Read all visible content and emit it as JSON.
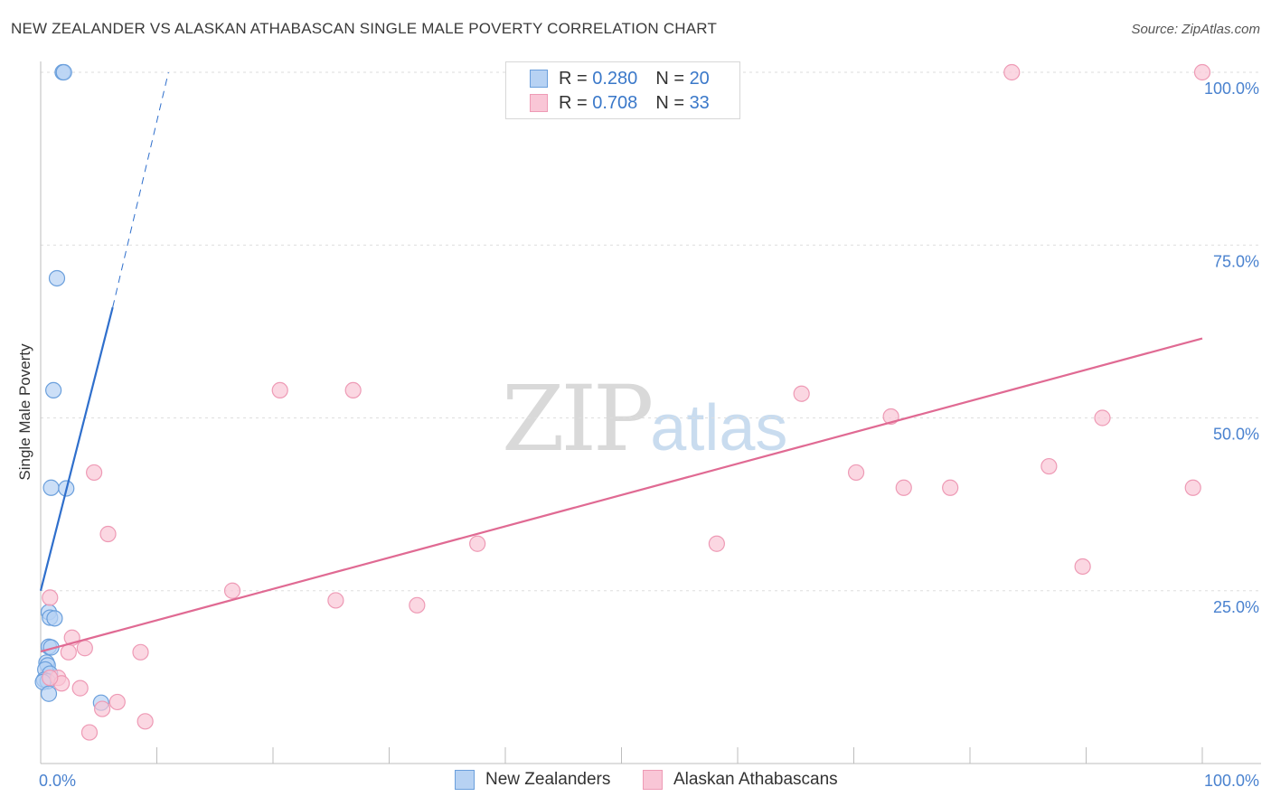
{
  "title": "NEW ZEALANDER VS ALASKAN ATHABASCAN SINGLE MALE POVERTY CORRELATION CHART",
  "source": "Source: ZipAtlas.com",
  "watermark": {
    "zip": "ZIP",
    "atlas": "atlas"
  },
  "legend": {
    "rows": [
      {
        "r_label": "R =",
        "r_value": "0.280",
        "n_label": "N =",
        "n_value": "20"
      },
      {
        "r_label": "R =",
        "r_value": "0.708",
        "n_label": "N =",
        "n_value": "33"
      }
    ]
  },
  "colors": {
    "blue_fill": "#b7d2f3",
    "blue_stroke": "#6a9fdc",
    "blue_line": "#2f6fcc",
    "pink_fill": "#f9c6d6",
    "pink_stroke": "#ee9ab5",
    "pink_line": "#e06a93",
    "tick_text": "#4a82cf"
  },
  "chart_data": {
    "type": "scatter",
    "title": "NEW ZEALANDER VS ALASKAN ATHABASCAN SINGLE MALE POVERTY CORRELATION CHART",
    "xlabel": "",
    "ylabel": "Single Male Poverty",
    "xlim": [
      0,
      100
    ],
    "ylim": [
      0,
      100
    ],
    "x_tick_labels": [
      "0.0%",
      "100.0%"
    ],
    "y_ticks": [
      25,
      50,
      75,
      100
    ],
    "y_tick_labels": [
      "25.0%",
      "50.0%",
      "75.0%",
      "100.0%"
    ],
    "series": [
      {
        "name": "New Zealanders",
        "r": 0.28,
        "n": 20,
        "points": [
          [
            1.9,
            100
          ],
          [
            2.0,
            100
          ],
          [
            1.4,
            70.2
          ],
          [
            1.1,
            54.0
          ],
          [
            0.9,
            39.9
          ],
          [
            2.2,
            39.8
          ],
          [
            0.7,
            21.9
          ],
          [
            0.8,
            21.1
          ],
          [
            1.2,
            21.0
          ],
          [
            0.7,
            16.9
          ],
          [
            0.9,
            16.8
          ],
          [
            0.5,
            14.6
          ],
          [
            0.6,
            14.2
          ],
          [
            0.4,
            13.6
          ],
          [
            0.8,
            13.0
          ],
          [
            0.3,
            12.1
          ],
          [
            0.6,
            11.9
          ],
          [
            0.2,
            11.8
          ],
          [
            0.7,
            10.1
          ],
          [
            5.2,
            8.8
          ]
        ],
        "trend": {
          "x": [
            0,
            6.2
          ],
          "y": [
            25.0,
            66.0
          ]
        },
        "trend_extension": {
          "x": [
            6.2,
            11.0
          ],
          "y": [
            66.0,
            100.0
          ]
        }
      },
      {
        "name": "Alaskan Athabascans",
        "r": 0.708,
        "n": 33,
        "points": [
          [
            83.6,
            100
          ],
          [
            100,
            100
          ],
          [
            20.6,
            54.0
          ],
          [
            26.9,
            54.0
          ],
          [
            65.5,
            53.5
          ],
          [
            73.2,
            50.2
          ],
          [
            91.4,
            50.0
          ],
          [
            4.6,
            42.1
          ],
          [
            70.2,
            42.1
          ],
          [
            86.8,
            43.0
          ],
          [
            74.3,
            39.9
          ],
          [
            78.3,
            39.9
          ],
          [
            99.2,
            39.9
          ],
          [
            5.8,
            33.2
          ],
          [
            37.6,
            31.8
          ],
          [
            58.2,
            31.8
          ],
          [
            89.7,
            28.5
          ],
          [
            0.8,
            24.0
          ],
          [
            16.5,
            25.0
          ],
          [
            25.4,
            23.6
          ],
          [
            32.4,
            22.9
          ],
          [
            2.7,
            18.2
          ],
          [
            3.8,
            16.7
          ],
          [
            2.4,
            16.1
          ],
          [
            8.6,
            16.1
          ],
          [
            1.5,
            12.4
          ],
          [
            1.8,
            11.6
          ],
          [
            0.8,
            12.4
          ],
          [
            3.4,
            10.9
          ],
          [
            6.6,
            8.9
          ],
          [
            5.3,
            7.9
          ],
          [
            9.0,
            6.1
          ],
          [
            4.2,
            4.5
          ]
        ],
        "trend": {
          "x": [
            0,
            100
          ],
          "y": [
            16.2,
            61.5
          ]
        }
      }
    ]
  },
  "bottom_legend": [
    "New Zealanders",
    "Alaskan Athabascans"
  ]
}
